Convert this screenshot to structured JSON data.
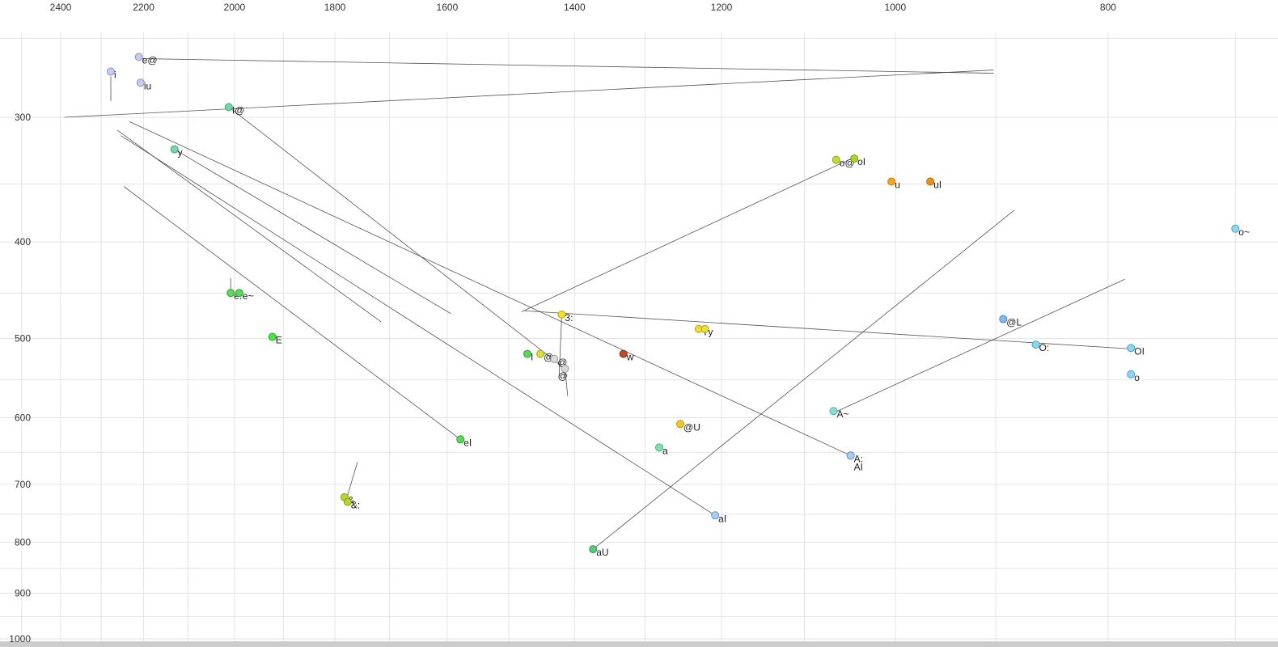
{
  "chart_data": {
    "type": "scatter",
    "title": "",
    "xlabel": "",
    "ylabel": "",
    "x_axis": {
      "ticks": [
        2400,
        2200,
        2000,
        1800,
        1600,
        1400,
        1200,
        1000,
        800
      ],
      "scale": "log",
      "reversed": true
    },
    "y_axis": {
      "ticks": [
        300,
        400,
        500,
        600,
        700,
        800,
        900,
        1000
      ],
      "scale": "log",
      "reversed": false
    },
    "grid": {
      "color": "#e3e3e3",
      "x_values": [
        2500,
        2400,
        2300,
        2200,
        2100,
        2000,
        1900,
        1800,
        1700,
        1600,
        1500,
        1400,
        1300,
        1200,
        1100,
        1000,
        900,
        800,
        700
      ],
      "y_values": [
        250,
        300,
        350,
        400,
        450,
        500,
        550,
        600,
        650,
        700,
        750,
        800,
        850,
        900,
        950,
        1000
      ]
    },
    "line_color": "#404040",
    "bottom_strip_color": "#cccccc",
    "points": [
      {
        "label": "e@",
        "f2": 2211,
        "f1": 261,
        "fill": "#c9cbee",
        "stroke": "#8a8fd0"
      },
      {
        "label": "i",
        "f2": 2277,
        "f1": 270,
        "fill": "#c9cbee",
        "stroke": "#8a8fd0"
      },
      {
        "label": "iu",
        "f2": 2207,
        "f1": 277,
        "fill": "#c9cbee",
        "stroke": "#8a8fd0"
      },
      {
        "label": "I@",
        "f2": 2012,
        "f1": 293,
        "fill": "#7bd3a8",
        "stroke": "#3da873"
      },
      {
        "label": "y",
        "f2": 2130,
        "f1": 323,
        "fill": "#7bd3a8",
        "stroke": "#3da873"
      },
      {
        "label": "o@",
        "f2": 1064,
        "f1": 331,
        "fill": "#c6da30",
        "stroke": "#8da512"
      },
      {
        "label": "oI",
        "f2": 1044,
        "f1": 330,
        "fill": "#a8d42c",
        "stroke": "#78a30e"
      },
      {
        "label": "u",
        "f2": 1004,
        "f1": 348,
        "fill": "#f6a623",
        "stroke": "#c07c0a"
      },
      {
        "label": "uI",
        "f2": 964,
        "f1": 348,
        "fill": "#ef8e1b",
        "stroke": "#b56a08"
      },
      {
        "label": "o~",
        "f2": 700,
        "f1": 388,
        "fill": "#8fd6ec",
        "stroke": "#4aa3c7"
      },
      {
        "label": "e:",
        "f2": 2008,
        "f1": 450,
        "fill": "#5cd65c",
        "stroke": "#2da32d"
      },
      {
        "label": "e~",
        "f2": 1990,
        "f1": 450,
        "fill": "#5cd65c",
        "stroke": "#2da32d"
      },
      {
        "label": "E",
        "f2": 1922,
        "f1": 498,
        "fill": "#4ee04e",
        "stroke": "#1fae1f"
      },
      {
        "label": "3:",
        "f2": 1419,
        "f1": 473,
        "fill": "#f2de33",
        "stroke": "#bba80d"
      },
      {
        "label": "Y",
        "f2": 1229,
        "f1": 489,
        "fill": "#ecdf38",
        "stroke": "#b5a810"
      },
      {
        "label": "y",
        "f2": 1221,
        "f1": 489,
        "fill": "#e4e23c",
        "stroke": "#adab12"
      },
      {
        "label": "I",
        "f2": 1471,
        "f1": 518,
        "fill": "#5cd65c",
        "stroke": "#2da32d"
      },
      {
        "label": "@",
        "f2": 1451,
        "f1": 518,
        "fill": "#d8de3a",
        "stroke": "#a3a80f"
      },
      {
        "label": "@",
        "f2": 1430,
        "f1": 524,
        "fill": "#dcdcdc",
        "stroke": "#9a9a9a"
      },
      {
        "label": "@",
        "f2": 1414,
        "f1": 536,
        "fill": "#d8d8d8",
        "stroke": "#999999",
        "ldx": -9,
        "ldy": 13
      },
      {
        "label": "w",
        "f2": 1330,
        "f1": 518,
        "fill": "#bf4a2a",
        "stroke": "#8a2f16"
      },
      {
        "label": "@U",
        "f2": 1253,
        "f1": 609,
        "fill": "#f2c52d",
        "stroke": "#bd920a"
      },
      {
        "label": "a",
        "f2": 1281,
        "f1": 643,
        "fill": "#7fe3a8",
        "stroke": "#3fb873"
      },
      {
        "label": "A~",
        "f2": 1067,
        "f1": 591,
        "fill": "#8fdcd4",
        "stroke": "#4aaea3"
      },
      {
        "label": "A:",
        "f2": 1048,
        "f1": 655,
        "fill": "#a9cdf0",
        "stroke": "#6192cc"
      },
      {
        "label": "AI",
        "f2": 1048,
        "f1": 655,
        "fill": "#a9cdf0",
        "stroke": "#6192cc",
        "ldy": 18
      },
      {
        "label": "aI",
        "f2": 1208,
        "f1": 752,
        "fill": "#a9cdf0",
        "stroke": "#6192cc"
      },
      {
        "label": "aU",
        "f2": 1373,
        "f1": 813,
        "fill": "#59c97a",
        "stroke": "#2a9950"
      },
      {
        "label": "eI",
        "f2": 1578,
        "f1": 631,
        "fill": "#5cd65c",
        "stroke": "#2da32d"
      },
      {
        "label": "&",
        "f2": 1782,
        "f1": 721,
        "fill": "#b9d333",
        "stroke": "#85a00c"
      },
      {
        "label": "&:",
        "f2": 1776,
        "f1": 729,
        "fill": "#b9d333",
        "stroke": "#85a00c"
      },
      {
        "label": "@L",
        "f2": 893,
        "f1": 478,
        "fill": "#8ab9e9",
        "stroke": "#4a7fc1"
      },
      {
        "label": "O:",
        "f2": 863,
        "f1": 507,
        "fill": "#8fd6ec",
        "stroke": "#4aa3c7"
      },
      {
        "label": "OI",
        "f2": 781,
        "f1": 511,
        "fill": "#8fd6ec",
        "stroke": "#4aa3c7"
      },
      {
        "label": "o",
        "f2": 781,
        "f1": 543,
        "fill": "#8fd6ec",
        "stroke": "#4aa3c7"
      }
    ],
    "trajectories": [
      {
        "f2a": 2390,
        "f1a": 300,
        "f2b": 902,
        "f1b": 269
      },
      {
        "f2a": 2211,
        "f1a": 262,
        "f2b": 902,
        "f1b": 271
      },
      {
        "f2a": 2262,
        "f1a": 309,
        "f2b": 1715,
        "f1b": 481
      },
      {
        "f2a": 2253,
        "f1a": 313,
        "f2b": 1208,
        "f1b": 752
      },
      {
        "f2a": 2246,
        "f1a": 352,
        "f2b": 1578,
        "f1b": 631
      },
      {
        "f2a": 2233,
        "f1a": 303,
        "f2b": 1048,
        "f1b": 655
      },
      {
        "f2a": 2012,
        "f1a": 293,
        "f2b": 1414,
        "f1b": 536
      },
      {
        "f2a": 1050,
        "f1a": 331,
        "f2b": 1480,
        "f1b": 470
      },
      {
        "f2a": 1419,
        "f1a": 476,
        "f2b": 1423,
        "f1b": 548
      },
      {
        "f2a": 1373,
        "f1a": 813,
        "f2b": 883,
        "f1b": 372
      },
      {
        "f2a": 1475,
        "f1a": 469,
        "f2b": 781,
        "f1b": 512
      },
      {
        "f2a": 1066,
        "f1a": 593,
        "f2b": 786,
        "f1b": 436
      },
      {
        "f2a": 2277,
        "f1a": 273,
        "f2b": 2277,
        "f1b": 289
      },
      {
        "f2a": 2008,
        "f1a": 435,
        "f2b": 2008,
        "f1b": 448
      },
      {
        "f2a": 1758,
        "f1a": 665,
        "f2b": 1777,
        "f1b": 720
      },
      {
        "f2a": 1414,
        "f1a": 538,
        "f2b": 1410,
        "f1b": 571
      },
      {
        "f2a": 2130,
        "f1a": 323,
        "f2b": 1594,
        "f1b": 472
      }
    ]
  }
}
